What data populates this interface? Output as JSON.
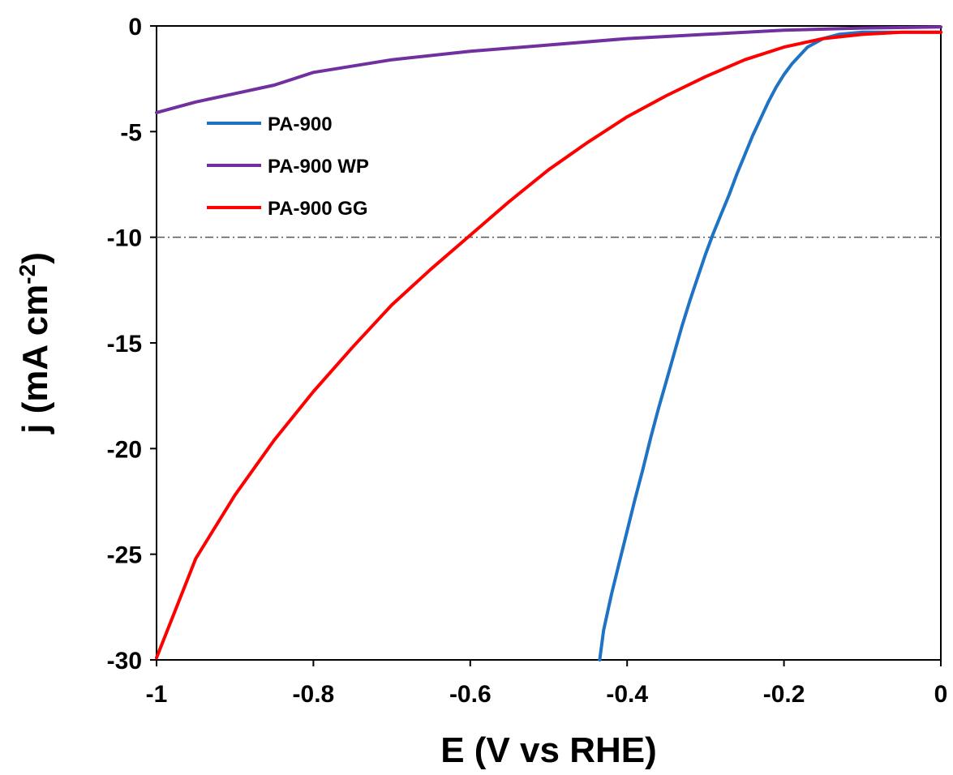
{
  "chart_data": {
    "type": "line",
    "xlabel": "E (V vs RHE)",
    "ylabel": "j (mA cm",
    "ylabel_sup": "-2",
    "ylabel_end": ")",
    "xlim": [
      -1,
      0
    ],
    "ylim": [
      -30,
      0
    ],
    "x_ticks": [
      -1,
      -0.8,
      -0.6,
      -0.4,
      -0.2,
      0
    ],
    "x_tick_labels": [
      "-1",
      "-0.8",
      "-0.6",
      "-0.4",
      "-0.2",
      "0"
    ],
    "y_ticks": [
      0,
      -5,
      -10,
      -15,
      -20,
      -25,
      -30
    ],
    "y_tick_labels": [
      "0",
      "-5",
      "-10",
      "-15",
      "-20",
      "-25",
      "-30"
    ],
    "grid": false,
    "legend_position": "top-left",
    "reference_line": {
      "y": -10,
      "style": "dash-dot",
      "color": "#555555"
    },
    "series": [
      {
        "name": "PA-900",
        "color": "#1f73c4",
        "x": [
          0,
          -0.05,
          -0.1,
          -0.13,
          -0.15,
          -0.17,
          -0.19,
          -0.2,
          -0.21,
          -0.22,
          -0.23,
          -0.24,
          -0.25,
          -0.26,
          -0.27,
          -0.28,
          -0.29,
          -0.3,
          -0.31,
          -0.32,
          -0.33,
          -0.34,
          -0.35,
          -0.36,
          -0.37,
          -0.38,
          -0.39,
          -0.4,
          -0.41,
          -0.42,
          -0.43,
          -0.435
        ],
        "y": [
          -0.3,
          -0.3,
          -0.3,
          -0.4,
          -0.6,
          -1.0,
          -1.8,
          -2.3,
          -2.9,
          -3.6,
          -4.4,
          -5.2,
          -6.1,
          -7.0,
          -8.0,
          -8.9,
          -9.8,
          -10.8,
          -11.9,
          -13.0,
          -14.2,
          -15.5,
          -16.8,
          -18.1,
          -19.5,
          -21.0,
          -22.4,
          -23.9,
          -25.4,
          -26.9,
          -28.6,
          -30.0
        ]
      },
      {
        "name": "PA-900 WP",
        "color": "#7030a0",
        "x": [
          0,
          -0.1,
          -0.2,
          -0.3,
          -0.4,
          -0.5,
          -0.6,
          -0.7,
          -0.8,
          -0.85,
          -0.9,
          -0.95,
          -1.0
        ],
        "y": [
          -0.05,
          -0.1,
          -0.2,
          -0.4,
          -0.6,
          -0.9,
          -1.2,
          -1.6,
          -2.2,
          -2.8,
          -3.2,
          -3.6,
          -4.1
        ]
      },
      {
        "name": "PA-900 GG",
        "color": "#ff0000",
        "x": [
          0,
          -0.05,
          -0.1,
          -0.15,
          -0.2,
          -0.25,
          -0.3,
          -0.35,
          -0.4,
          -0.45,
          -0.5,
          -0.55,
          -0.6,
          -0.65,
          -0.7,
          -0.75,
          -0.8,
          -0.85,
          -0.9,
          -0.95,
          -1.0
        ],
        "y": [
          -0.3,
          -0.3,
          -0.4,
          -0.6,
          -1.0,
          -1.6,
          -2.4,
          -3.3,
          -4.3,
          -5.5,
          -6.8,
          -8.3,
          -9.9,
          -11.5,
          -13.2,
          -15.2,
          -17.3,
          -19.6,
          -22.2,
          -25.2,
          -29.9
        ]
      }
    ]
  }
}
